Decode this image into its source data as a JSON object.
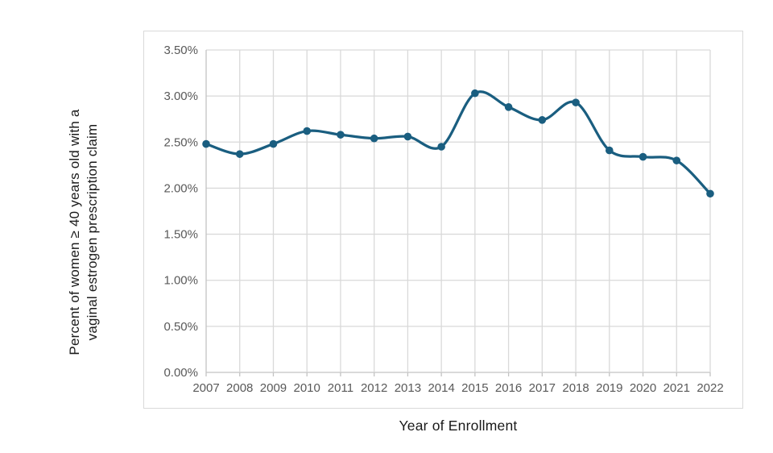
{
  "chart_data": {
    "type": "line",
    "x": [
      "2007",
      "2008",
      "2009",
      "2010",
      "2011",
      "2012",
      "2013",
      "2014",
      "2015",
      "2016",
      "2017",
      "2018",
      "2019",
      "2020",
      "2021",
      "2022"
    ],
    "series": [
      {
        "name": "Percent of women with a vaginal estrogen prescription claim",
        "values": [
          2.48,
          2.37,
          2.48,
          2.62,
          2.58,
          2.54,
          2.56,
          2.45,
          3.03,
          2.88,
          2.74,
          2.93,
          2.41,
          2.34,
          2.3,
          1.94
        ]
      }
    ],
    "title": "",
    "xlabel": "Year of Enrollment",
    "ylabel": "Percent of women ≥ 40 years old with a vaginal estrogen prescription claim",
    "ylabel_lines": [
      "Percent of women ≥ 40 years old with a",
      "vaginal estrogen prescription claim"
    ],
    "ylim": [
      0,
      3.5
    ],
    "ytick_step": 0.5,
    "ytick_labels": [
      "0.00%",
      "0.50%",
      "1.00%",
      "1.50%",
      "2.00%",
      "2.50%",
      "3.00%",
      "3.50%"
    ],
    "grid": true,
    "legend": false,
    "smoothed_line": true,
    "colors": {
      "line": "#1a5e80",
      "marker": "#1a5e80",
      "grid": "#d9d9d9",
      "axis": "#c3c3c3",
      "tick_text": "#595959",
      "title_text": "#1a1a1a",
      "background": "#ffffff"
    }
  }
}
